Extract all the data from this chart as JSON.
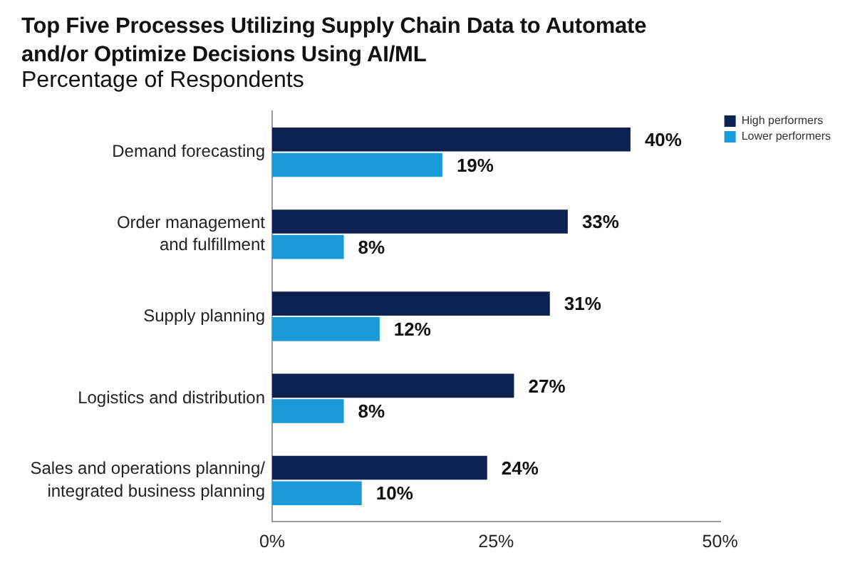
{
  "chart_data": {
    "type": "bar",
    "orientation": "horizontal",
    "title": "Top Five Processes Utilizing Supply Chain Data to Automate and/or Optimize Decisions Using AI/ML",
    "subtitle": "Percentage of Respondents",
    "categories": [
      "Demand forecasting",
      "Order management and fulfillment",
      "Supply planning",
      "Logistics and distribution",
      "Sales and operations planning/ integrated business planning"
    ],
    "series": [
      {
        "name": "High performers",
        "color": "#0c2150",
        "values": [
          40,
          33,
          31,
          27,
          24
        ],
        "value_labels": [
          "40%",
          "33%",
          "31%",
          "27%",
          "24%"
        ]
      },
      {
        "name": "Lower performers",
        "color": "#1a9bd7",
        "values": [
          19,
          8,
          12,
          8,
          10
        ],
        "value_labels": [
          "19%",
          "8%",
          "12%",
          "8%",
          "10%"
        ]
      }
    ],
    "xlim": [
      0,
      50
    ],
    "xticks": [
      {
        "value": 0,
        "label": "0%"
      },
      {
        "value": 25,
        "label": "25%"
      },
      {
        "value": 50,
        "label": "50%"
      }
    ],
    "legend": "top right"
  }
}
